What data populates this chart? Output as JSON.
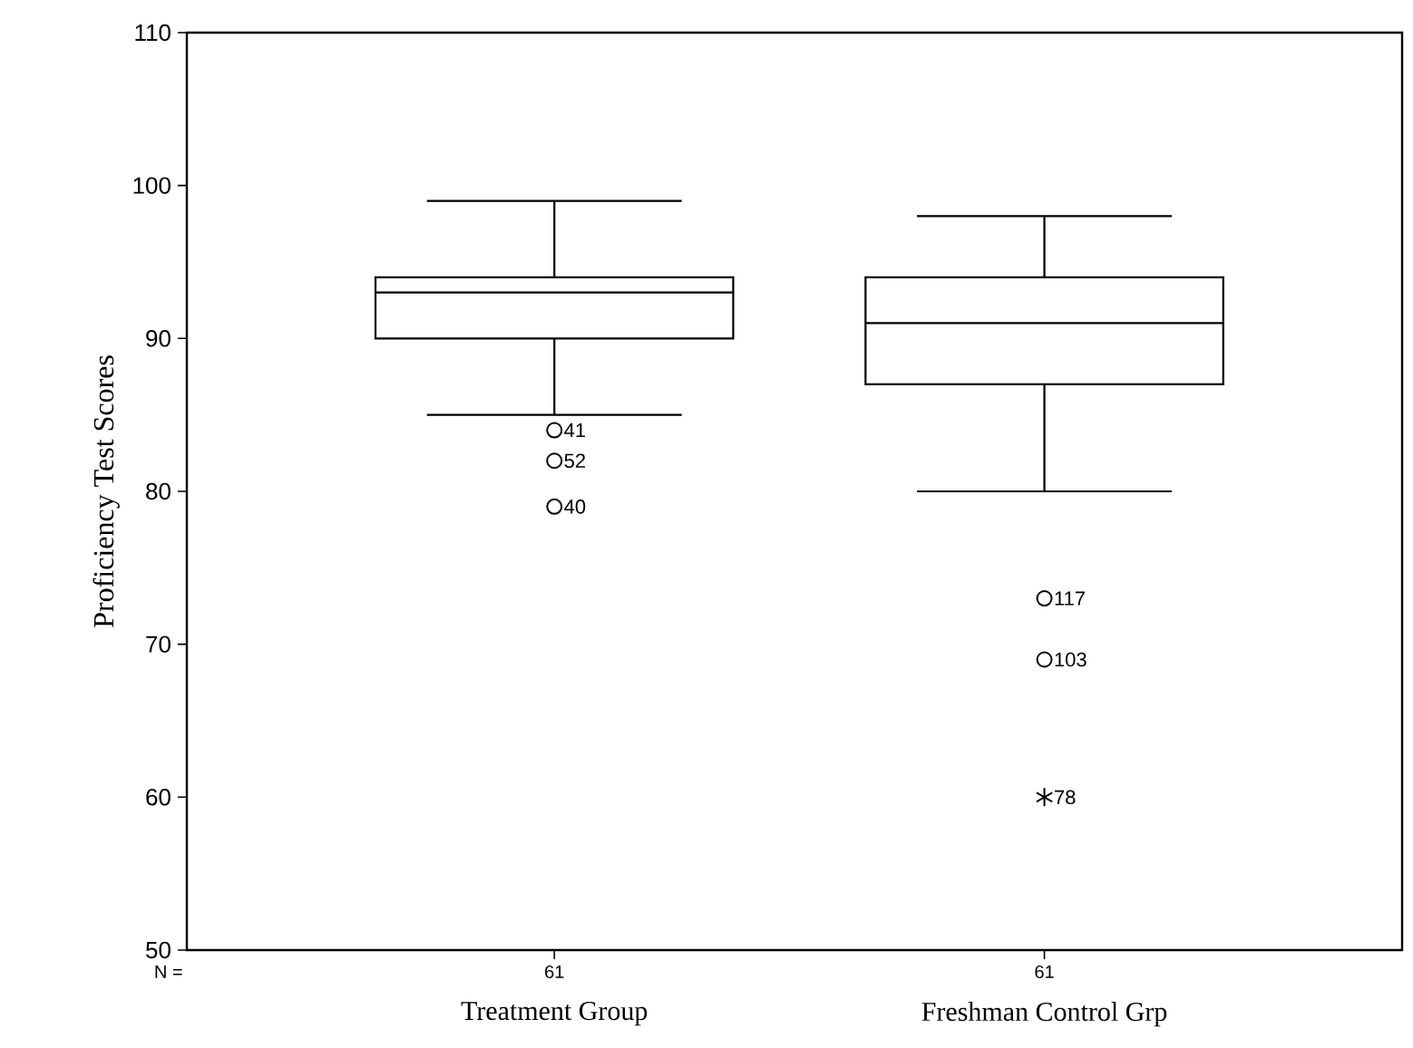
{
  "chart_data": {
    "type": "box",
    "ylabel": "Proficiency Test Scores",
    "categories": [
      "Treatment Group",
      "Freshman Control Grp"
    ],
    "boxes": [
      {
        "low": 85,
        "q1": 90,
        "median": 93,
        "q3": 94,
        "high": 99
      },
      {
        "low": 80,
        "q1": 87,
        "median": 91,
        "q3": 94,
        "high": 98
      }
    ],
    "series": [
      {
        "type": "scatter",
        "x": [
          "Treatment Group",
          "Treatment Group",
          "Treatment Group",
          "Freshman Control Grp",
          "Freshman Control Grp"
        ],
        "values": [
          84,
          82,
          79,
          73,
          69
        ],
        "marker": "circle",
        "color": "#000000"
      },
      {
        "type": "scatter",
        "x": [
          "Freshman Control Grp"
        ],
        "values": [
          60
        ],
        "marker": "cross",
        "color": "#000000"
      }
    ],
    "color": "#000000",
    "ylim": [
      50,
      110
    ],
    "yticks": [
      50,
      60,
      70,
      80,
      90,
      100,
      110
    ],
    "annotations": [
      "N =",
      "61",
      "61",
      {
        "text": "41",
        "x": "Treatment Group",
        "y": 84
      },
      {
        "text": "52",
        "x": "Treatment Group",
        "y": 82
      },
      {
        "text": "40",
        "x": "Treatment Group",
        "y": 79
      },
      {
        "text": "117",
        "x": "Freshman Control Grp",
        "y": 73
      },
      {
        "text": "103",
        "x": "Freshman Control Grp",
        "y": 69
      },
      {
        "text": "78",
        "x": "Freshman Control Grp",
        "y": 60
      }
    ]
  }
}
